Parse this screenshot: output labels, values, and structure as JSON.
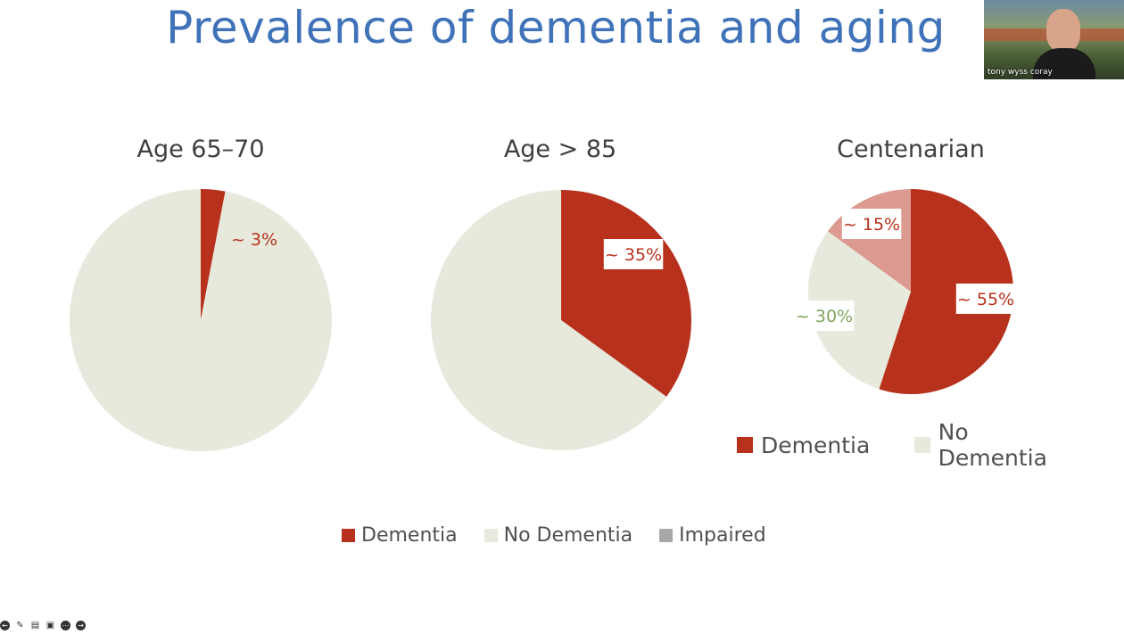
{
  "slide": {
    "title": "Prevalence of dementia and aging"
  },
  "webcam": {
    "name": "tony wyss coray"
  },
  "colors": {
    "dementia": "#b8311d",
    "no_dementia": "#e6e9dc",
    "impaired_legend": "#a8a8a8",
    "impaired_slice": "#dc9a91",
    "title": "#3f72b8",
    "no_dementia_label": "#7fa35c"
  },
  "chart_data": [
    {
      "type": "pie",
      "title": "Age 65–70",
      "slices": [
        {
          "name": "Dementia",
          "value": 3,
          "label": "~ 3%"
        },
        {
          "name": "No Dementia",
          "value": 97,
          "label": ""
        }
      ]
    },
    {
      "type": "pie",
      "title": "Age > 85",
      "slices": [
        {
          "name": "Dementia",
          "value": 35,
          "label": "~ 35%"
        },
        {
          "name": "No Dementia",
          "value": 65,
          "label": ""
        }
      ]
    },
    {
      "type": "pie",
      "title": "Centenarian",
      "slices": [
        {
          "name": "Dementia",
          "value": 55,
          "label": "~ 55%"
        },
        {
          "name": "No Dementia",
          "value": 30,
          "label": "~ 30%"
        },
        {
          "name": "Impaired",
          "value": 15,
          "label": "~ 15%"
        }
      ],
      "legend": [
        "Dementia",
        "No Dementia"
      ]
    }
  ],
  "legend": {
    "bottom": [
      "Dementia",
      "No Dementia",
      "Impaired"
    ],
    "right": [
      "Dementia",
      "No Dementia"
    ]
  },
  "toolbar": {
    "icons": [
      "arrow-left-icon",
      "pen-icon",
      "captions-icon",
      "video-icon",
      "more-icon",
      "arrow-right-icon"
    ]
  }
}
